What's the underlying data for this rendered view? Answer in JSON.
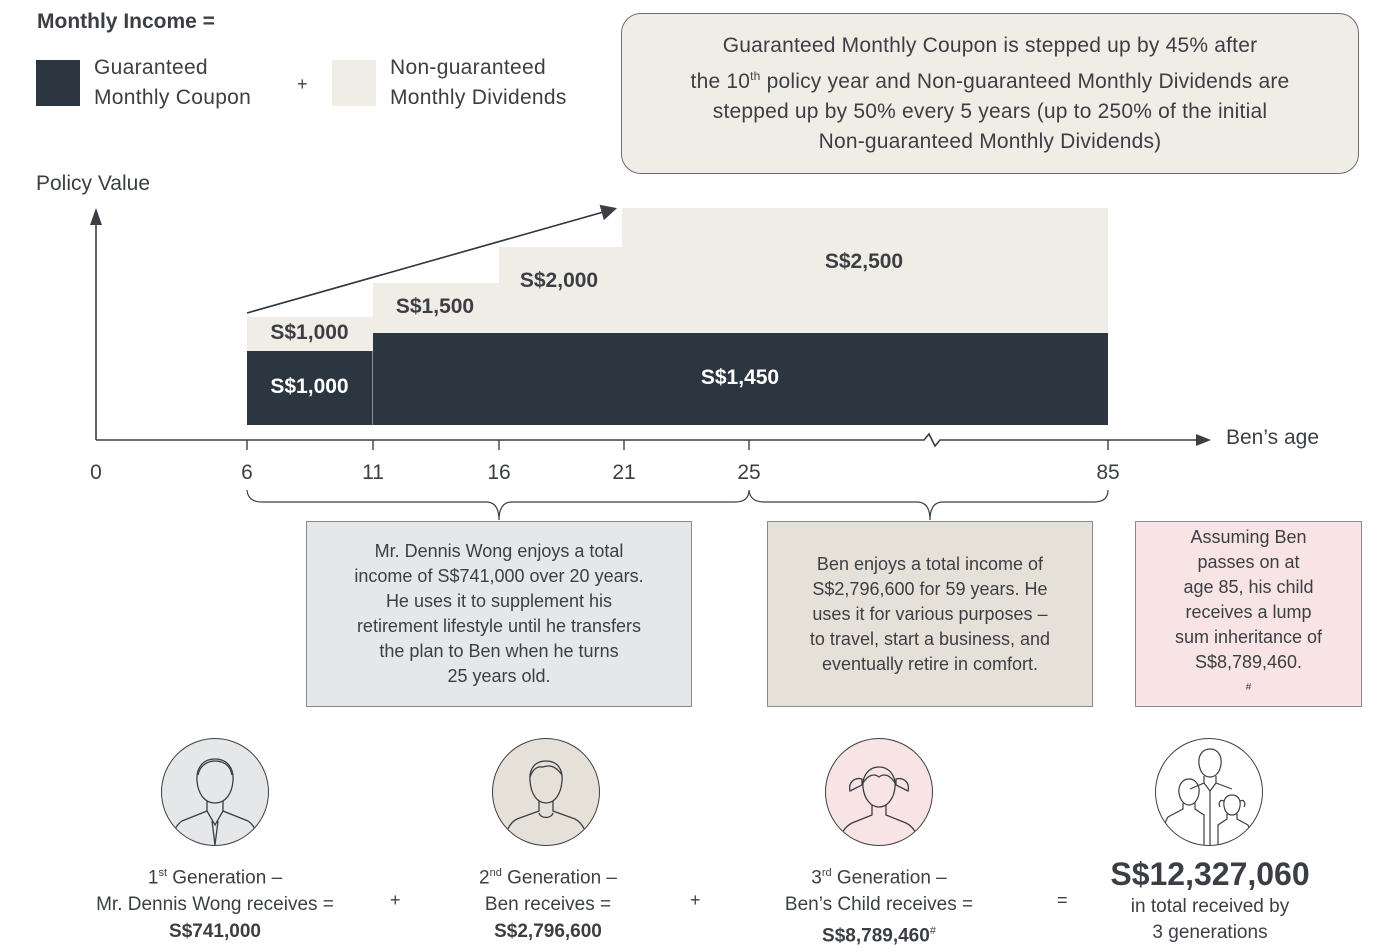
{
  "legend": {
    "title": "Monthly Income =",
    "guaranteed_line1": "Guaranteed",
    "guaranteed_line2": "Monthly Coupon",
    "plus": "+",
    "nonguaranteed_line1": "Non-guaranteed",
    "nonguaranteed_line2": "Monthly Dividends",
    "colors": {
      "guaranteed": "#2c3640",
      "nonguaranteed": "#f0ede6"
    }
  },
  "note": {
    "line1": "Guaranteed Monthly Coupon is stepped up by 45% after",
    "line2_pre": "the 10",
    "line2_sup": "th",
    "line2_post": " policy year and Non-guaranteed Monthly Dividends are",
    "line3": "stepped up by 50% every 5 years (up to 250% of the initial",
    "line4": "Non-guaranteed Monthly Dividends)"
  },
  "chart": {
    "y_axis_label": "Policy Value",
    "x_axis_label": "Ben’s age",
    "ticks": [
      "0",
      "6",
      "11",
      "16",
      "21",
      "25",
      "85"
    ],
    "guaranteed_labels": [
      "S$1,000",
      "S$1,450"
    ],
    "dividend_labels": [
      "S$1,000",
      "S$1,500",
      "S$2,000",
      "S$2,500"
    ]
  },
  "boxes": {
    "dennis": [
      "Mr. Dennis Wong enjoys a total",
      "income of S$741,000 over 20 years.",
      "He uses it to supplement his",
      "retirement lifestyle until he transfers",
      "the plan to Ben when he turns",
      "25 years old."
    ],
    "ben": [
      "Ben enjoys a total income of",
      "S$2,796,600 for 59 years. He",
      "uses it for various purposes –",
      "to travel, start a business, and",
      "eventually retire in comfort."
    ],
    "child": [
      "Assuming Ben",
      "passes on at",
      "age 85, his child",
      "receives a lump",
      "sum inheritance of",
      "S$8,789,460."
    ],
    "child_mark": "#",
    "colors": {
      "dennis": "#e6e7e8",
      "ben": "#e6e1d8",
      "child": "#f8e4e4"
    }
  },
  "generations": {
    "g1": {
      "num": "1",
      "sup": "st",
      "title": " Generation –",
      "line2": "Mr. Dennis Wong receives =",
      "amount": "S$741,000"
    },
    "g2": {
      "num": "2",
      "sup": "nd",
      "title": " Generation –",
      "line2": "Ben receives =",
      "amount": "S$2,796,600"
    },
    "g3": {
      "num": "3",
      "sup": "rd",
      "title": " Generation –",
      "line2": "Ben’s Child receives =",
      "amount": "S$8,789,460",
      "mark": "#"
    },
    "op_plus": "+",
    "op_equals": "=",
    "total": "S$12,327,060",
    "total_line1": "in total received by",
    "total_line2": "3 generations",
    "avatar_colors": {
      "g1": "#e6e7e8",
      "g2": "#e6e1d8",
      "g3": "#f8e4e4"
    }
  }
}
